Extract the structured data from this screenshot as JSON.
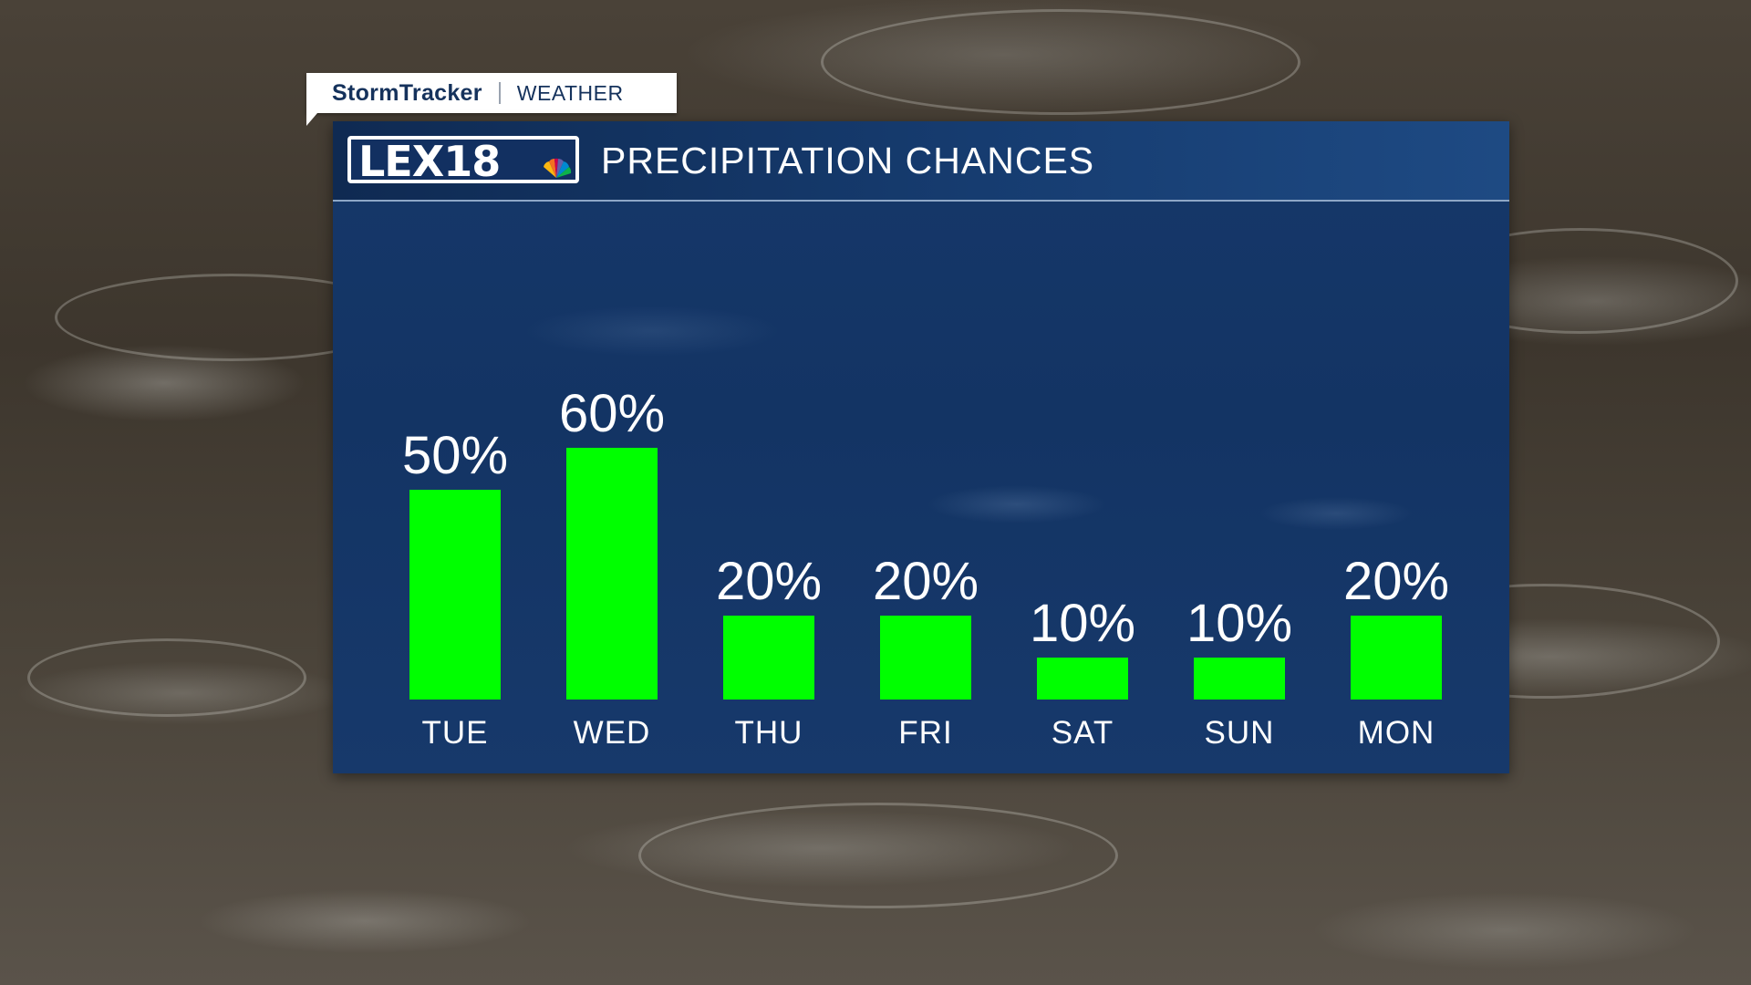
{
  "branding": {
    "network": "StormTracker",
    "section": "WEATHER",
    "station_logo": "LEX18",
    "logo_icon": "peacock-icon"
  },
  "colors": {
    "bar": "#00ff00",
    "panel": "#143566",
    "text": "#ffffff",
    "brand_text": "#15325c"
  },
  "chart_data": {
    "type": "bar",
    "title": "PRECIPITATION CHANCES",
    "categories": [
      "TUE",
      "WED",
      "THU",
      "FRI",
      "SAT",
      "SUN",
      "MON"
    ],
    "values": [
      50,
      60,
      20,
      20,
      10,
      10,
      20
    ],
    "value_labels": [
      "50%",
      "60%",
      "20%",
      "20%",
      "10%",
      "10%",
      "20%"
    ],
    "unit": "%",
    "ylim": [
      0,
      100
    ],
    "grid": false,
    "legend": "none"
  }
}
